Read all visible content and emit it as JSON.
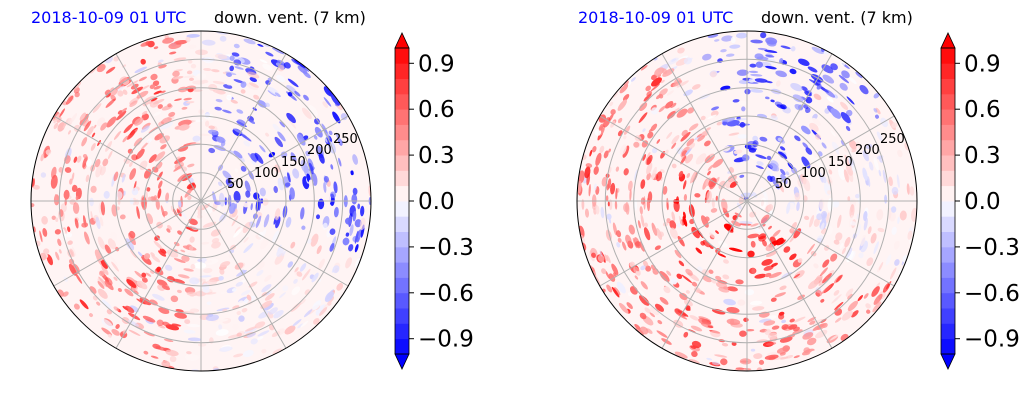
{
  "chart_data": [
    {
      "type": "heatmap",
      "projection": "polar",
      "title_left": "2018-10-09 01 UTC",
      "title_right": "down. vent. (7 km)",
      "title_left_color": "#0000ff",
      "radial_ticks": [
        "50",
        "100",
        "150",
        "200",
        "250"
      ],
      "radial_tick_values": [
        50,
        100,
        150,
        200,
        250
      ],
      "r_max": 300,
      "angular_gridlines_deg": [
        0,
        30,
        60,
        90,
        120,
        150,
        180,
        210,
        240,
        270,
        300,
        330
      ],
      "grid": true,
      "colorbar": {
        "cmap": "bwr",
        "vmin": -1.0,
        "vmax": 1.0,
        "levels": 21,
        "extend": "both",
        "ticks": [
          -0.9,
          -0.6,
          -0.3,
          0.0,
          0.3,
          0.6,
          0.9
        ],
        "tick_labels": [
          "−0.9",
          "−0.6",
          "−0.3",
          "0.0",
          "0.3",
          "0.6",
          "0.9"
        ]
      },
      "pattern": {
        "description": "positive (red) patches dominate west / northwest half, negative (blue) streaks in northeast quadrant",
        "red_sector_deg": [
          95,
          265
        ],
        "blue_sector_deg": [
          -20,
          80
        ],
        "ring_strength": 0.0
      }
    },
    {
      "type": "heatmap",
      "projection": "polar",
      "title_left": "2018-10-09 01 UTC",
      "title_right": "down. vent. (7 km)",
      "title_left_color": "#0000ff",
      "radial_ticks": [
        "50",
        "100",
        "150",
        "200",
        "250"
      ],
      "radial_tick_values": [
        50,
        100,
        150,
        200,
        250
      ],
      "r_max": 300,
      "angular_gridlines_deg": [
        0,
        30,
        60,
        90,
        120,
        150,
        180,
        210,
        240,
        270,
        300,
        330
      ],
      "grid": true,
      "colorbar": {
        "cmap": "bwr",
        "vmin": -1.0,
        "vmax": 1.0,
        "levels": 21,
        "extend": "both",
        "ticks": [
          -0.9,
          -0.6,
          -0.3,
          0.0,
          0.3,
          0.6,
          0.9
        ],
        "tick_labels": [
          "−0.9",
          "−0.6",
          "−0.3",
          "0.0",
          "0.3",
          "0.6",
          "0.9"
        ]
      },
      "pattern": {
        "description": "strong red spiral band west and southwest of the center near r 50-120, blue arc north of center, light red elsewhere",
        "red_sector_deg": [
          120,
          330
        ],
        "blue_sector_deg": [
          30,
          110
        ],
        "ring_strength": 1.0
      }
    }
  ]
}
